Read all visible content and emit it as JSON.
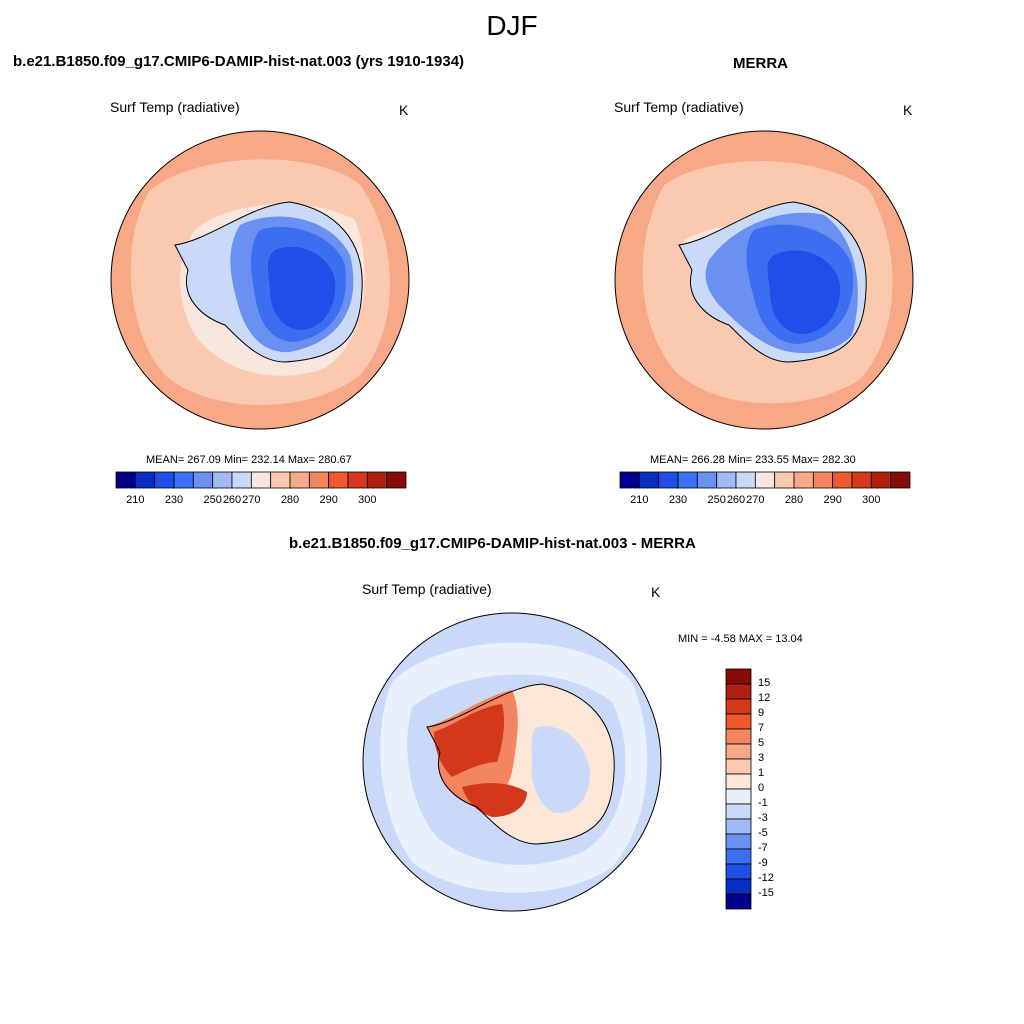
{
  "figure": {
    "title": "DJF"
  },
  "panels": [
    {
      "title": "b.e21.B1850.f09_g17.CMIP6-DAMIP-hist-nat.003 (yrs 1910-1934)",
      "variable": "Surf Temp (radiative)",
      "units": "K",
      "stats": "MEAN= 267.09  Min= 232.14  Max= 280.67"
    },
    {
      "title": "MERRA",
      "variable": "Surf Temp (radiative)",
      "units": "K",
      "stats": "MEAN= 266.28  Min= 233.55  Max= 282.30"
    },
    {
      "title": "b.e21.B1850.f09_g17.CMIP6-DAMIP-hist-nat.003 - MERRA",
      "variable": "Surf Temp (radiative)",
      "units": "K",
      "stats": "MIN =  -4.58 MAX =  13.04"
    }
  ],
  "colorbars": {
    "abs": {
      "labels": [
        "210",
        "230",
        "250",
        "260",
        "270",
        "280",
        "290",
        "300"
      ],
      "colors": [
        "#00008c",
        "#0a2ec4",
        "#1f4fe8",
        "#3b6ef0",
        "#6a90f2",
        "#a0baf5",
        "#cad9f8",
        "#f7e6dc",
        "#fbc9b0",
        "#f7a886",
        "#f38560",
        "#ed5a2e",
        "#d4371a",
        "#b02010",
        "#880a06"
      ]
    },
    "diff": {
      "labels": [
        "15",
        "12",
        "9",
        "7",
        "5",
        "3",
        "1",
        "0",
        "-1",
        "-3",
        "-5",
        "-7",
        "-9",
        "-12",
        "-15"
      ],
      "colors": [
        "#880a06",
        "#b02010",
        "#d4371a",
        "#ed5a2e",
        "#f38560",
        "#f7a886",
        "#fbc9b0",
        "#fbe6d8",
        "#e8f0fc",
        "#cad9f8",
        "#a0baf5",
        "#6a90f2",
        "#3b6ef0",
        "#1f4fe8",
        "#0a2ec4",
        "#00008c"
      ]
    }
  },
  "map_colors": {
    "ocean_warm": "#f7a886",
    "ocean_mid": "#fbc9b0",
    "ocean_light": "#f7e6dc",
    "ice_light": "#cad9f8",
    "ice_mid": "#6a90f2",
    "ice_deep": "#3b6ef0",
    "ice_core": "#1f4fe8",
    "diff_ocean": "#cad9f8",
    "diff_ocean_light": "#e8f0fc",
    "diff_warm_light": "#fbe6d8",
    "diff_warm": "#f38560",
    "diff_hot": "#d4371a"
  }
}
